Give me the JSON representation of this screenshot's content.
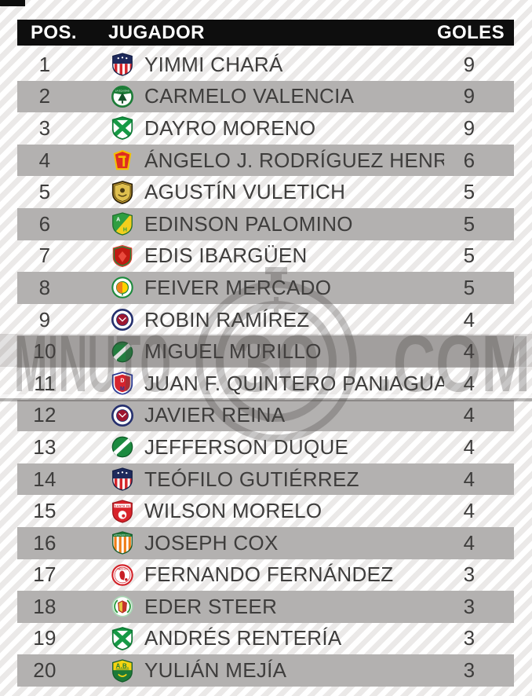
{
  "watermark": {
    "left": "MINUTO",
    "number": "30",
    "right": ".COM"
  },
  "colors": {
    "header_bg": "#0e0e0e",
    "header_text": "#ffffff",
    "row_alt_gray": "#b3b1b0",
    "row_text": "#3e3d3c",
    "stripe_gray": "#ebe9e8",
    "watermark_gray": "#4a4745"
  },
  "table": {
    "headers": {
      "pos": "POS.",
      "player": "JUGADOR",
      "goals": "GOLES"
    },
    "rows": [
      {
        "pos": "1",
        "player": "YIMMI CHARÁ",
        "goals": "9",
        "badge": "junior"
      },
      {
        "pos": "2",
        "player": "CARMELO VALENCIA",
        "goals": "9",
        "badge": "equidad",
        "badge_text": "LA EQUIDAD"
      },
      {
        "pos": "3",
        "player": "DAYRO MORENO",
        "goals": "9",
        "badge": "nacional"
      },
      {
        "pos": "4",
        "player": "ÁNGELO J. RODRÍGUEZ HENRY",
        "goals": "6",
        "badge": "tolima"
      },
      {
        "pos": "5",
        "player": "AGUSTÍN VULETICH",
        "goals": "5",
        "badge": "aguilas"
      },
      {
        "pos": "6",
        "player": "EDINSON PALOMINO",
        "goals": "5",
        "badge": "huila"
      },
      {
        "pos": "7",
        "player": "EDIS IBARGÜEN",
        "goals": "5",
        "badge": "fortaleza"
      },
      {
        "pos": "8",
        "player": "FEIVER MERCADO",
        "goals": "5",
        "badge": "cortulua"
      },
      {
        "pos": "9",
        "player": "ROBIN RAMÍREZ",
        "goals": "4",
        "badge": "pasto"
      },
      {
        "pos": "10",
        "player": "MIGUEL MURILLO",
        "goals": "4",
        "badge": "cali"
      },
      {
        "pos": "11",
        "player": "JUAN F. QUINTERO PANIAGUA",
        "goals": "4",
        "badge": "dim"
      },
      {
        "pos": "12",
        "player": "JAVIER REINA",
        "goals": "4",
        "badge": "pasto"
      },
      {
        "pos": "13",
        "player": "JEFFERSON DUQUE",
        "goals": "4",
        "badge": "cali"
      },
      {
        "pos": "14",
        "player": "TEÓFILO GUTIÉRREZ",
        "goals": "4",
        "badge": "junior"
      },
      {
        "pos": "15",
        "player": "WILSON MORELO",
        "goals": "4",
        "badge": "santafe",
        "badge_text": "SANTA FE"
      },
      {
        "pos": "16",
        "player": "JOSEPH COX",
        "goals": "4",
        "badge": "envigado",
        "badge_text": "ENVIGADO F.C."
      },
      {
        "pos": "17",
        "player": "FERNANDO FERNÁNDEZ",
        "goals": "3",
        "badge": "america",
        "badge_text": "AMÉRICA"
      },
      {
        "pos": "18",
        "player": "EDER STEER",
        "goals": "3",
        "badge": "laurel"
      },
      {
        "pos": "19",
        "player": "ANDRÉS RENTERÍA",
        "goals": "3",
        "badge": "nacional"
      },
      {
        "pos": "20",
        "player": "YULIÁN MEJÍA",
        "goals": "3",
        "badge": "bucaramanga",
        "badge_text": "A.B."
      }
    ]
  }
}
